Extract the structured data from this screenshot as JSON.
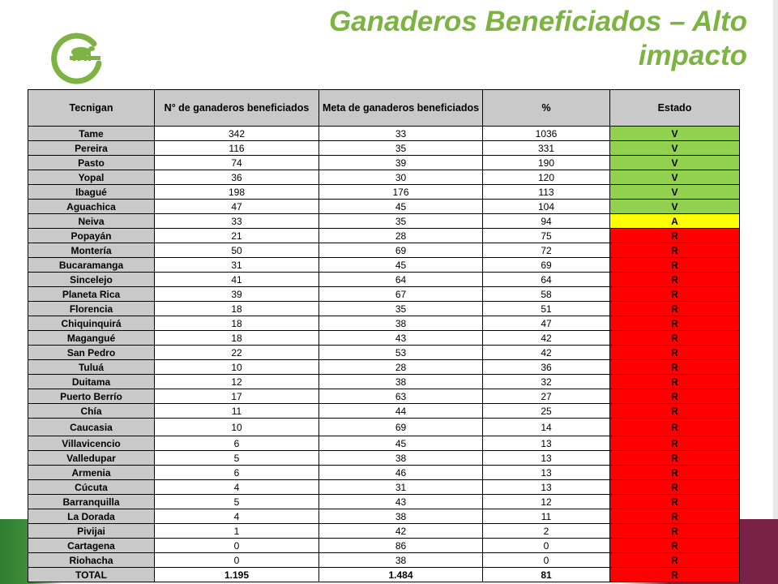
{
  "title": "Ganaderos Beneficiados – Alto impacto",
  "logo": {
    "icon": "cow-in-circle-logo",
    "color": "#7cb342"
  },
  "table": {
    "headers": [
      "Tecnigan",
      "N° de ganaderos beneficiados",
      "Meta de ganaderos beneficiados",
      "%",
      "Estado"
    ],
    "rows": [
      {
        "tecnigan": "Tame",
        "beneficiados": "342",
        "meta": "33",
        "pct": "1036",
        "estado": "V"
      },
      {
        "tecnigan": "Pereira",
        "beneficiados": "116",
        "meta": "35",
        "pct": "331",
        "estado": "V"
      },
      {
        "tecnigan": "Pasto",
        "beneficiados": "74",
        "meta": "39",
        "pct": "190",
        "estado": "V"
      },
      {
        "tecnigan": "Yopal",
        "beneficiados": "36",
        "meta": "30",
        "pct": "120",
        "estado": "V"
      },
      {
        "tecnigan": "Ibagué",
        "beneficiados": "198",
        "meta": "176",
        "pct": "113",
        "estado": "V"
      },
      {
        "tecnigan": "Aguachica",
        "beneficiados": "47",
        "meta": "45",
        "pct": "104",
        "estado": "V"
      },
      {
        "tecnigan": "Neiva",
        "beneficiados": "33",
        "meta": "35",
        "pct": "94",
        "estado": "A"
      },
      {
        "tecnigan": "Popayán",
        "beneficiados": "21",
        "meta": "28",
        "pct": "75",
        "estado": "R"
      },
      {
        "tecnigan": "Montería",
        "beneficiados": "50",
        "meta": "69",
        "pct": "72",
        "estado": "R"
      },
      {
        "tecnigan": "Bucaramanga",
        "beneficiados": "31",
        "meta": "45",
        "pct": "69",
        "estado": "R"
      },
      {
        "tecnigan": "Sincelejo",
        "beneficiados": "41",
        "meta": "64",
        "pct": "64",
        "estado": "R"
      },
      {
        "tecnigan": "Planeta Rica",
        "beneficiados": "39",
        "meta": "67",
        "pct": "58",
        "estado": "R"
      },
      {
        "tecnigan": "Florencia",
        "beneficiados": "18",
        "meta": "35",
        "pct": "51",
        "estado": "R"
      },
      {
        "tecnigan": "Chiquinquirá",
        "beneficiados": "18",
        "meta": "38",
        "pct": "47",
        "estado": "R"
      },
      {
        "tecnigan": "Magangué",
        "beneficiados": "18",
        "meta": "43",
        "pct": "42",
        "estado": "R"
      },
      {
        "tecnigan": "San Pedro",
        "beneficiados": "22",
        "meta": "53",
        "pct": "42",
        "estado": "R"
      },
      {
        "tecnigan": "Tuluá",
        "beneficiados": "10",
        "meta": "28",
        "pct": "36",
        "estado": "R"
      },
      {
        "tecnigan": "Duitama",
        "beneficiados": "12",
        "meta": "38",
        "pct": "32",
        "estado": "R"
      },
      {
        "tecnigan": "Puerto Berrío",
        "beneficiados": "17",
        "meta": "63",
        "pct": "27",
        "estado": "R"
      },
      {
        "tecnigan": "Chía",
        "beneficiados": "11",
        "meta": "44",
        "pct": "25",
        "estado": "R"
      },
      {
        "tecnigan": "Caucasia",
        "beneficiados": "10",
        "meta": "69",
        "pct": "14",
        "estado": "R",
        "tall": true
      },
      {
        "tecnigan": "Villavicencio",
        "beneficiados": "6",
        "meta": "45",
        "pct": "13",
        "estado": "R"
      },
      {
        "tecnigan": "Valledupar",
        "beneficiados": "5",
        "meta": "38",
        "pct": "13",
        "estado": "R"
      },
      {
        "tecnigan": "Armenia",
        "beneficiados": "6",
        "meta": "46",
        "pct": "13",
        "estado": "R"
      },
      {
        "tecnigan": "Cúcuta",
        "beneficiados": "4",
        "meta": "31",
        "pct": "13",
        "estado": "R"
      },
      {
        "tecnigan": "Barranquilla",
        "beneficiados": "5",
        "meta": "43",
        "pct": "12",
        "estado": "R"
      },
      {
        "tecnigan": "La Dorada",
        "beneficiados": "4",
        "meta": "38",
        "pct": "11",
        "estado": "R"
      },
      {
        "tecnigan": "Pivijai",
        "beneficiados": "1",
        "meta": "42",
        "pct": "2",
        "estado": "R"
      },
      {
        "tecnigan": "Cartagena",
        "beneficiados": "0",
        "meta": "86",
        "pct": "0",
        "estado": "R"
      },
      {
        "tecnigan": "Riohacha",
        "beneficiados": "0",
        "meta": "38",
        "pct": "0",
        "estado": "R"
      }
    ],
    "total": {
      "tecnigan": "TOTAL",
      "beneficiados": "1.195",
      "meta": "1.484",
      "pct": "81",
      "estado": "R"
    }
  },
  "colors": {
    "title_green": "#7cb342",
    "status_V": "#92d050",
    "status_A": "#ffff00",
    "status_R": "#ff0000",
    "header_gray": "#c9c9c9",
    "bottom_right_band": "#7a2147"
  }
}
